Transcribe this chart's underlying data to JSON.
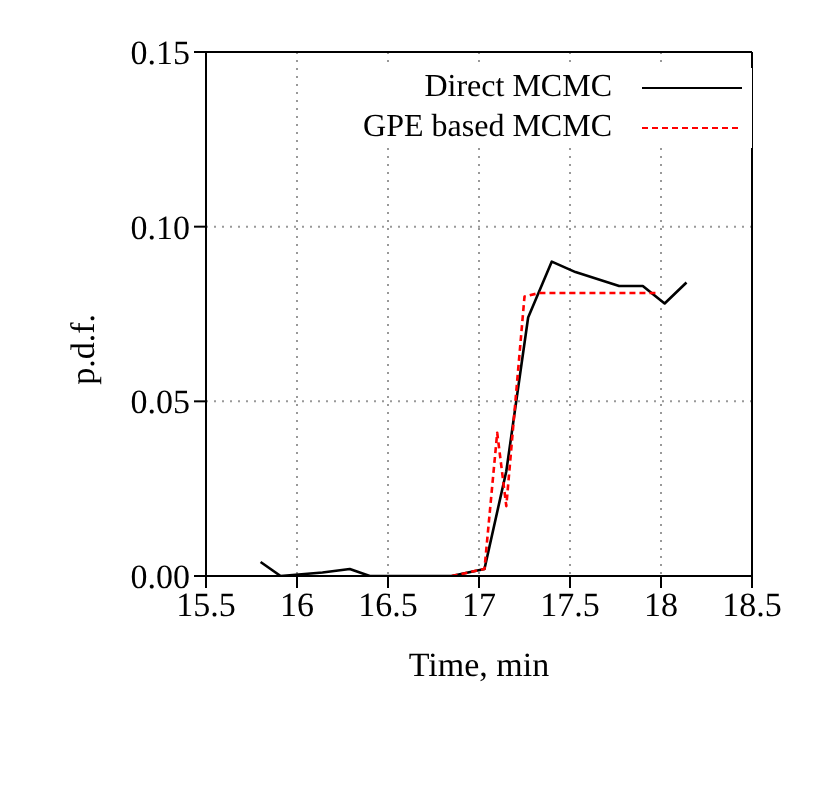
{
  "chart_data": {
    "type": "line",
    "xlabel": "Time, min",
    "ylabel": "p.d.f.",
    "xlim": [
      15.5,
      18.5
    ],
    "ylim": [
      0,
      0.15
    ],
    "xticks": [
      15.5,
      16,
      16.5,
      17,
      17.5,
      18,
      18.5
    ],
    "yticks": [
      {
        "value": 0,
        "label": "0.00"
      },
      {
        "value": 0.05,
        "label": "0.05"
      },
      {
        "value": 0.1,
        "label": "0.10"
      },
      {
        "value": 0.15,
        "label": "0.15"
      }
    ],
    "grid": true,
    "legend": "top right",
    "marker": "none",
    "series": [
      {
        "name": "Direct MCMC",
        "color": "#000000",
        "line_style": "solid",
        "x": [
          15.8,
          15.91,
          16.14,
          16.29,
          16.4,
          16.85,
          17.03,
          17.15,
          17.27,
          17.4,
          17.53,
          17.77,
          17.9,
          18.02,
          18.14
        ],
        "values": [
          0.004,
          0,
          0.001,
          0.002,
          0,
          0,
          0.002,
          0.03,
          0.074,
          0.09,
          0.087,
          0.083,
          0.083,
          0.078,
          0.084
        ]
      },
      {
        "name": "GPE based MCMC",
        "color": "#ff0000",
        "line_style": "dashed",
        "x": [
          16.85,
          17.03,
          17.1,
          17.15,
          17.25,
          17.33,
          17.98
        ],
        "values": [
          0,
          0.002,
          0.041,
          0.02,
          0.08,
          0.081,
          0.081
        ]
      }
    ]
  }
}
